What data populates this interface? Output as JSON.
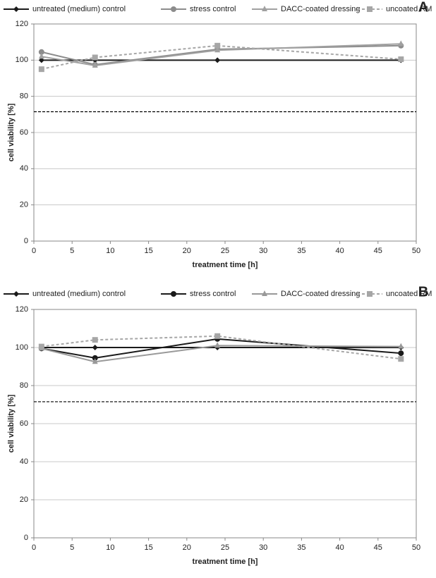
{
  "chart_data": [
    {
      "type": "line",
      "panel_label": "A",
      "xlabel": "treatment time [h]",
      "ylabel": "cell viability [%]",
      "x": [
        1,
        8,
        24,
        48
      ],
      "series": [
        {
          "name": "untreated (medium) control",
          "color": "#1a1a1a",
          "marker": "diamond",
          "dashed": false,
          "values": [
            100,
            100,
            100,
            100
          ]
        },
        {
          "name": "stress control",
          "color": "#8c8c8c",
          "marker": "circle",
          "dashed": false,
          "values": [
            104.5,
            97.5,
            106,
            108
          ]
        },
        {
          "name": "DACC-coated dressing",
          "color": "#a0a0a0",
          "marker": "triangle",
          "dashed": false,
          "values": [
            102,
            97,
            105.5,
            109
          ]
        },
        {
          "name": "uncoated RM",
          "color": "#a6a6a6",
          "marker": "square",
          "dashed": true,
          "values": [
            95,
            101.5,
            108,
            100.5
          ]
        }
      ],
      "reference_line": 71.5,
      "xlim": [
        0,
        50
      ],
      "xticks": [
        0,
        5,
        10,
        15,
        20,
        25,
        30,
        35,
        40,
        45,
        50
      ],
      "ylim": [
        0,
        120
      ],
      "yticks": [
        0,
        20,
        40,
        60,
        80,
        100,
        120
      ],
      "grid": true
    },
    {
      "type": "line",
      "panel_label": "B",
      "xlabel": "treatment time [h]",
      "ylabel": "cell viability [%]",
      "x": [
        1,
        8,
        24,
        48
      ],
      "series": [
        {
          "name": "untreated (medium) control",
          "color": "#1a1a1a",
          "marker": "diamond",
          "dashed": false,
          "values": [
            100,
            100,
            100,
            100
          ]
        },
        {
          "name": "stress control",
          "color": "#1a1a1a",
          "marker": "circle",
          "dashed": false,
          "values": [
            99.5,
            94.5,
            104.5,
            97
          ]
        },
        {
          "name": "DACC-coated dressing",
          "color": "#999999",
          "marker": "triangle",
          "dashed": false,
          "values": [
            99.5,
            92.5,
            101,
            100.5
          ]
        },
        {
          "name": "uncoated RM",
          "color": "#a6a6a6",
          "marker": "square",
          "dashed": true,
          "values": [
            100.5,
            104,
            106,
            94
          ]
        }
      ],
      "reference_line": 71.5,
      "xlim": [
        0,
        50
      ],
      "xticks": [
        0,
        5,
        10,
        15,
        20,
        25,
        30,
        35,
        40,
        45,
        50
      ],
      "ylim": [
        0,
        120
      ],
      "yticks": [
        0,
        20,
        40,
        60,
        80,
        100,
        120
      ],
      "grid": true
    }
  ]
}
